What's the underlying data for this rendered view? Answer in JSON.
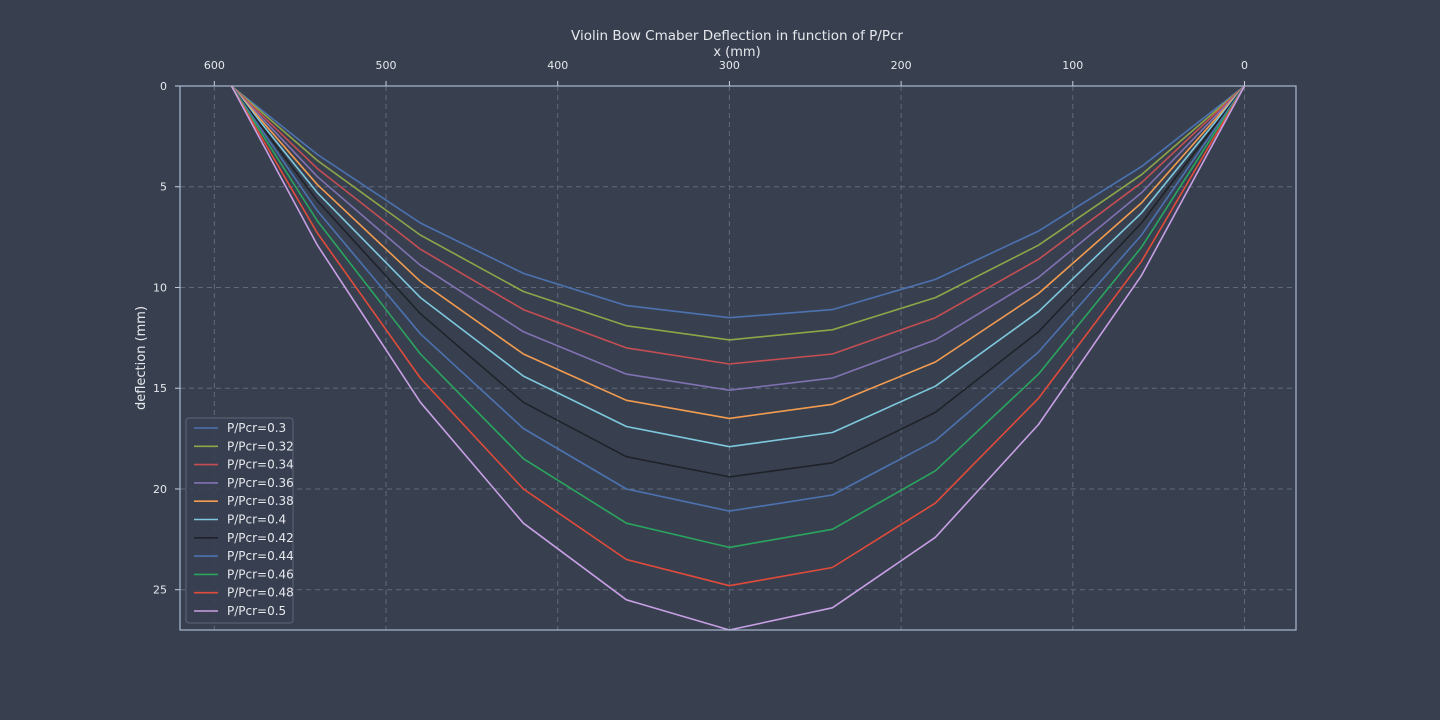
{
  "chart_data": {
    "type": "line",
    "title": "Violin Bow Cmaber Deflection in function of P/Pcr",
    "xlabel": "x (mm)",
    "ylabel": "deflection (mm)",
    "x_axis_position": "top",
    "x_inverted": true,
    "y_inverted": true,
    "xlim": [
      620,
      -30
    ],
    "ylim": [
      27,
      0
    ],
    "xticks": [
      600,
      500,
      400,
      300,
      200,
      100,
      0
    ],
    "yticks": [
      0,
      5,
      10,
      15,
      20,
      25
    ],
    "grid": true,
    "legend_position": "lower-left",
    "x": [
      590,
      540,
      480,
      420,
      360,
      300,
      240,
      180,
      120,
      60,
      0
    ],
    "series": [
      {
        "name": "P/Pcr=0.3",
        "color": "#4c72b0",
        "values": [
          0,
          3.4,
          6.8,
          9.3,
          10.9,
          11.5,
          11.1,
          9.6,
          7.2,
          4.0,
          0
        ]
      },
      {
        "name": "P/Pcr=0.32",
        "color": "#8ea548",
        "values": [
          0,
          3.7,
          7.4,
          10.2,
          11.9,
          12.6,
          12.1,
          10.5,
          7.9,
          4.4,
          0
        ]
      },
      {
        "name": "P/Pcr=0.34",
        "color": "#c44e52",
        "values": [
          0,
          4.1,
          8.1,
          11.1,
          13.0,
          13.8,
          13.3,
          11.5,
          8.6,
          4.8,
          0
        ]
      },
      {
        "name": "P/Pcr=0.36",
        "color": "#8172b2",
        "values": [
          0,
          4.5,
          8.9,
          12.2,
          14.3,
          15.1,
          14.5,
          12.6,
          9.5,
          5.3,
          0
        ]
      },
      {
        "name": "P/Pcr=0.38",
        "color": "#f39c4f",
        "values": [
          0,
          4.9,
          9.7,
          13.3,
          15.6,
          16.5,
          15.8,
          13.7,
          10.3,
          5.8,
          0
        ]
      },
      {
        "name": "P/Pcr=0.4",
        "color": "#7ec8dd",
        "values": [
          0,
          5.3,
          10.5,
          14.4,
          16.9,
          17.9,
          17.2,
          14.9,
          11.2,
          6.3,
          0
        ]
      },
      {
        "name": "P/Pcr=0.42",
        "color": "#1f2228",
        "values": [
          0,
          5.7,
          11.3,
          15.7,
          18.4,
          19.4,
          18.7,
          16.2,
          12.2,
          6.8,
          0
        ]
      },
      {
        "name": "P/Pcr=0.44",
        "color": "#4c72b0",
        "values": [
          0,
          6.2,
          12.3,
          17.0,
          20.0,
          21.1,
          20.3,
          17.6,
          13.2,
          7.4,
          0
        ]
      },
      {
        "name": "P/Pcr=0.46",
        "color": "#2aa55e",
        "values": [
          0,
          6.7,
          13.3,
          18.5,
          21.7,
          22.9,
          22.0,
          19.1,
          14.3,
          8.0,
          0
        ]
      },
      {
        "name": "P/Pcr=0.48",
        "color": "#e24b3a",
        "values": [
          0,
          7.3,
          14.5,
          20.0,
          23.5,
          24.8,
          23.9,
          20.7,
          15.5,
          8.7,
          0
        ]
      },
      {
        "name": "P/Pcr=0.5",
        "color": "#c79fe3",
        "values": [
          0,
          7.9,
          15.7,
          21.7,
          25.5,
          27.0,
          25.9,
          22.4,
          16.8,
          9.4,
          0
        ]
      }
    ]
  },
  "colors": {
    "background": "#384050",
    "axes_frame": "#a9b8d0",
    "grid": "#5e6a7c",
    "text": "#e6e8ec",
    "legend_border": "#5b6577"
  }
}
